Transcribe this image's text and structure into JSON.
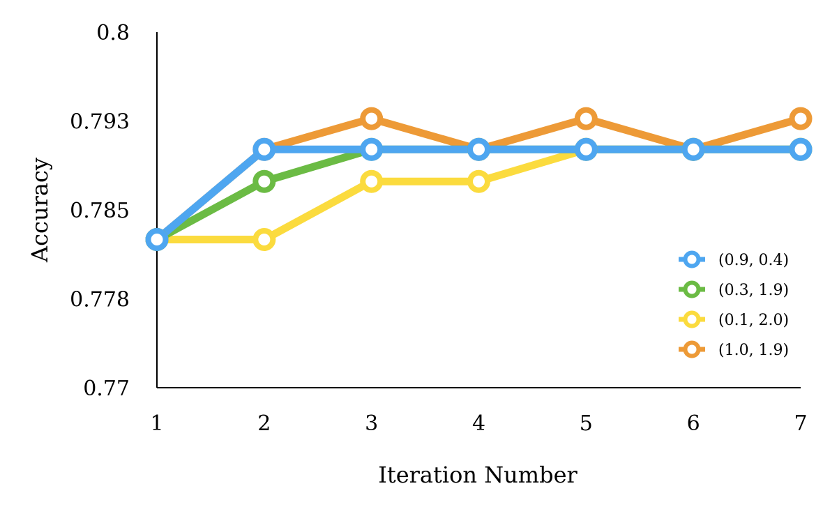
{
  "chart_data": {
    "type": "line",
    "title": "",
    "xlabel": "Iteration Number",
    "ylabel": "Accuracy",
    "x": [
      1,
      2,
      3,
      4,
      5,
      6,
      7
    ],
    "x_ticks": [
      "1",
      "2",
      "3",
      "4",
      "5",
      "6",
      "7"
    ],
    "ylim": [
      0.77,
      0.8
    ],
    "y_ticks": [
      "0.77",
      "0.778",
      "0.785",
      "0.793",
      "0.8"
    ],
    "y_tick_values": [
      0.77,
      0.7775,
      0.785,
      0.7925,
      0.8
    ],
    "grid": false,
    "legend_position": "right",
    "series": [
      {
        "name": "(1.0, 1.9)",
        "color": "#ED9A37",
        "values": [
          0.7825,
          0.7901,
          0.7927,
          0.7901,
          0.7927,
          0.7901,
          0.7927
        ]
      },
      {
        "name": "(0.1, 2.0)",
        "color": "#FBDB3E",
        "values": [
          0.7825,
          0.7825,
          0.7874,
          0.7874,
          0.7901,
          0.7901,
          0.7901
        ]
      },
      {
        "name": "(0.3, 1.9)",
        "color": "#6BBB44",
        "values": [
          0.7825,
          0.7874,
          0.7901,
          0.7901,
          0.7901,
          0.7901,
          0.7901
        ]
      },
      {
        "name": "(0.9, 0.4)",
        "color": "#4EA6F0",
        "values": [
          0.7825,
          0.7901,
          0.7901,
          0.7901,
          0.7901,
          0.7901,
          0.7901
        ]
      }
    ],
    "legend_order": [
      "(0.9, 0.4)",
      "(0.3, 1.9)",
      "(0.1, 2.0)",
      "(1.0, 1.9)"
    ]
  }
}
